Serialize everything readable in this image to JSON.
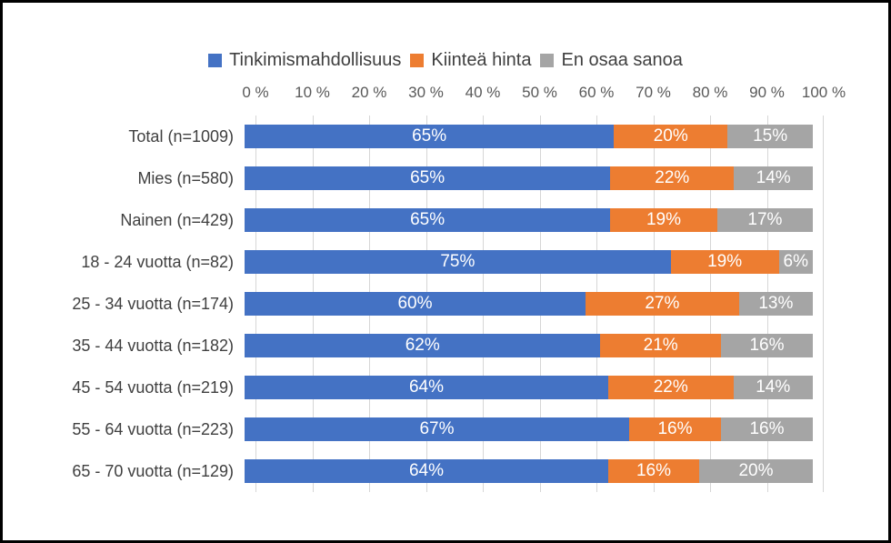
{
  "legend": {
    "position": "top-center",
    "items": [
      {
        "key": "tinkimismahdollisuus",
        "label": "Tinkimismahdollisuus",
        "color": "#4472C4"
      },
      {
        "key": "kiintea-hinta",
        "label": "Kiinteä hinta",
        "color": "#ED7D31"
      },
      {
        "key": "en-osaa-sanoa",
        "label": "En osaa sanoa",
        "color": "#A5A5A5"
      }
    ]
  },
  "chart_data": {
    "type": "bar",
    "orientation": "horizontal",
    "stacked": true,
    "title": "",
    "xlabel": "",
    "ylabel": "",
    "xlim": [
      0,
      100
    ],
    "grid": true,
    "gridline_color": "#D6D6D6",
    "legend_position": "top",
    "x_tick_labels": [
      "0 %",
      "10 %",
      "20 %",
      "30 %",
      "40 %",
      "50 %",
      "60 %",
      "70 %",
      "80 %",
      "90 %",
      "100 %"
    ],
    "categories": [
      "Total (n=1009)",
      "Mies (n=580)",
      "Nainen (n=429)",
      "18 - 24 vuotta (n=82)",
      "25 - 34 vuotta (n=174)",
      "35 - 44 vuotta (n=182)",
      "45 - 54 vuotta (n=219)",
      "55 - 64 vuotta (n=223)",
      "65 - 70 vuotta (n=129)"
    ],
    "series": [
      {
        "name": "Tinkimismahdollisuus",
        "color": "#4472C4",
        "values": [
          65,
          65,
          65,
          75,
          60,
          62,
          64,
          67,
          64
        ]
      },
      {
        "name": "Kiinteä hinta",
        "color": "#ED7D31",
        "values": [
          20,
          22,
          19,
          19,
          27,
          21,
          22,
          16,
          16
        ]
      },
      {
        "name": "En osaa sanoa",
        "color": "#A5A5A5",
        "values": [
          15,
          14,
          17,
          6,
          13,
          16,
          14,
          16,
          20
        ]
      }
    ],
    "data_label_suffix": "%",
    "data_label_color": "#FFFFFF"
  }
}
